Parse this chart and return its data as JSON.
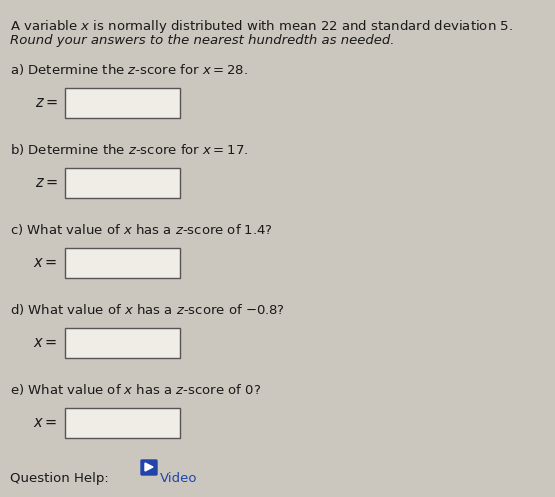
{
  "bg_color": "#cbc6be",
  "text_color": "#1a1a1a",
  "title_line1": "A variable $x$ is normally distributed with mean 22 and standard deviation 5.",
  "title_line2": "Round your answers to the nearest hundredth as needed.",
  "parts": [
    {
      "label": "a) Determine the $z$-score for $x = 28.$",
      "var": "z ="
    },
    {
      "label": "b) Determine the $z$-score for $x = 17.$",
      "var": "z ="
    },
    {
      "label": "c) What value of $x$ has a $z$-score of 1.4?",
      "var": "x ="
    },
    {
      "label": "d) What value of $x$ has a $z$-score of $-0.8$?",
      "var": "x ="
    },
    {
      "label": "e) What value of $x$ has a $z$-score of 0?",
      "var": "x ="
    }
  ],
  "box_color": "#f0ece6",
  "box_edge_color": "#555555",
  "title_fontsize": 9.5,
  "label_fontsize": 9.5,
  "var_fontsize": 10.5,
  "footer_fontsize": 9.5,
  "footer_link_color": "#2244aa"
}
